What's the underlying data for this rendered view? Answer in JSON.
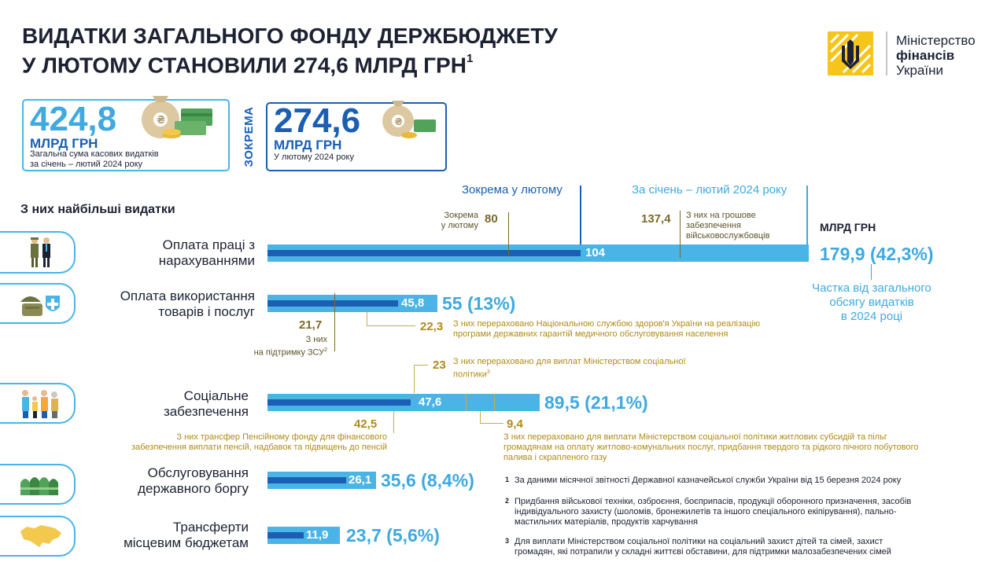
{
  "header": {
    "title_line1": "ВИДАТКИ ЗАГАЛЬНОГО ФОНДУ ДЕРЖБЮДЖЕТУ",
    "title_line2": "У ЛЮТОМУ СТАНОВИЛИ 274,6 МЛРД ГРН",
    "title_sup": "1"
  },
  "logo": {
    "line1": "Міністерство",
    "line2": "фінансів",
    "line3": "України"
  },
  "cards": {
    "total": {
      "value": "424,8",
      "unit": "МЛРД ГРН",
      "caption1": "Загальна сума касових видатків",
      "caption2": "за січень – лютий 2024 року"
    },
    "vertical_label": "ЗОКРЕМА",
    "february": {
      "value": "274,6",
      "unit": "МЛРД ГРН",
      "caption": "У лютому 2024 року"
    }
  },
  "legend": {
    "february": "Зокрема у лютому",
    "jan_feb": "За січень – лютий 2024 року",
    "section_heading": "З них найбільші видатки",
    "unit": "МЛРД ГРН"
  },
  "colors": {
    "light_blue": "#4ab4e6",
    "dark_blue": "#1a5fb4",
    "gold": "#b08a1a",
    "olive": "#7a6a2a"
  },
  "categories": [
    {
      "label1": "Оплата праці з",
      "label2": "нарахуваннями",
      "icon": "soldier-and-worker-icon",
      "bar_feb": "104",
      "total": "179,9 (42,3%)",
      "note_a_num": "80",
      "note_a_txt1": "Зокрема",
      "note_a_txt2": "у лютому",
      "note_b_num": "137,4",
      "note_b_txt1": "З них на грошове",
      "note_b_txt2": "забезпечення",
      "note_b_txt3": "військовослужбовців",
      "share1": "Частка від загального",
      "share2": "обсягу видатків",
      "share3": "в 2024 році"
    },
    {
      "label1": "Оплата використання",
      "label2": "товарів і послуг",
      "icon": "military-supplies-icon",
      "bar_feb": "45,8",
      "total": "55 (13%)",
      "note_a_num": "21,7",
      "note_a_txt1": "З них",
      "note_a_txt2": "на підтримку ЗСУ",
      "note_a_sup": "2",
      "note_b_num": "22,3",
      "note_b_txt1": "З них перераховано Національною службою здоров'я України на реалізацію",
      "note_b_txt2": "програми державних гарантій медичного обслуговування населення"
    },
    {
      "label1": "Соціальне",
      "label2": "забезпечення",
      "icon": "family-icon",
      "bar_feb": "47,6",
      "total": "89,5 (21,1%)",
      "note_top_num": "23",
      "note_top_txt1": "З них перераховано для виплат Міністерством соціальної",
      "note_top_txt2": "політики",
      "note_top_sup": "3",
      "note_a_num": "42,5",
      "note_a_txt1": "З них трансфер Пенсійному фонду для фінансового",
      "note_a_txt2": "забезпечення виплати пенсій, надбавок та підвищень до пенсій",
      "note_b_num": "9,4",
      "note_b_txt1": "З них перераховано для виплати Міністерством соціальної політики  житлових субсидій та пільг",
      "note_b_txt2": "громадянам на оплату житлово-комунальних послуг, придбання твердого та рідкого пічного побутового",
      "note_b_txt3": "палива і скрапленого газу"
    },
    {
      "label1": "Обслуговування",
      "label2": "державного боргу",
      "icon": "money-stack-icon",
      "bar_feb": "26,1",
      "total": "35,6 (8,4%)"
    },
    {
      "label1": "Трансферти",
      "label2": "місцевим бюджетам",
      "icon": "ukraine-map-icon",
      "bar_feb": "11,9",
      "total": "23,7 (5,6%)"
    }
  ],
  "footnotes": [
    {
      "mark": "1",
      "lines": [
        "За даними місячної звітності Державної казначейської служби України від 15 березня 2024 року"
      ]
    },
    {
      "mark": "2",
      "lines": [
        "Придбання військової техніки, озброєння, боєприпасів, продукції оборонного призначення, засобів",
        "індивідуального захисту (шоломів, бронежилетів та іншого спеціального екіпірування), пально-",
        "мастильних матеріалів, продуктів харчування"
      ]
    },
    {
      "mark": "3",
      "lines": [
        "Для виплати Міністерством соціальної політики на соціальний захист дітей та сімей, захист",
        "громадян, які потрапили у складні життєві обставини, для підтримки малозабезпечених сімей"
      ]
    }
  ]
}
